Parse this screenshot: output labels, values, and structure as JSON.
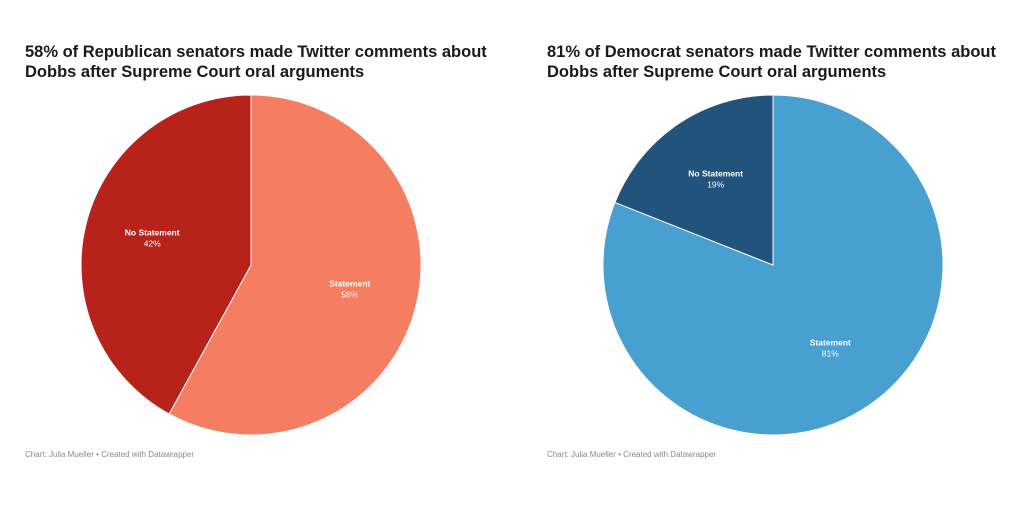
{
  "chart_data": [
    {
      "type": "pie",
      "title": "58% of Republican senators made Twitter comments about Dobbs after Supreme Court oral arguments",
      "slices": [
        {
          "label": "Statement",
          "value": 58,
          "display": "58%",
          "color": "#f47d62"
        },
        {
          "label": "No Statement",
          "value": 42,
          "display": "42%",
          "color": "#b7221b"
        }
      ],
      "credit": "Chart: Julia Mueller • Created with Datawrapper"
    },
    {
      "type": "pie",
      "title": "81% of Democrat senators made Twitter comments about Dobbs after Supreme Court oral arguments",
      "slices": [
        {
          "label": "Statement",
          "value": 81,
          "display": "81%",
          "color": "#48a0d0"
        },
        {
          "label": "No Statement",
          "value": 19,
          "display": "19%",
          "color": "#22537c"
        }
      ],
      "credit": "Chart: Julia Mueller • Created with Datawrapper"
    }
  ]
}
